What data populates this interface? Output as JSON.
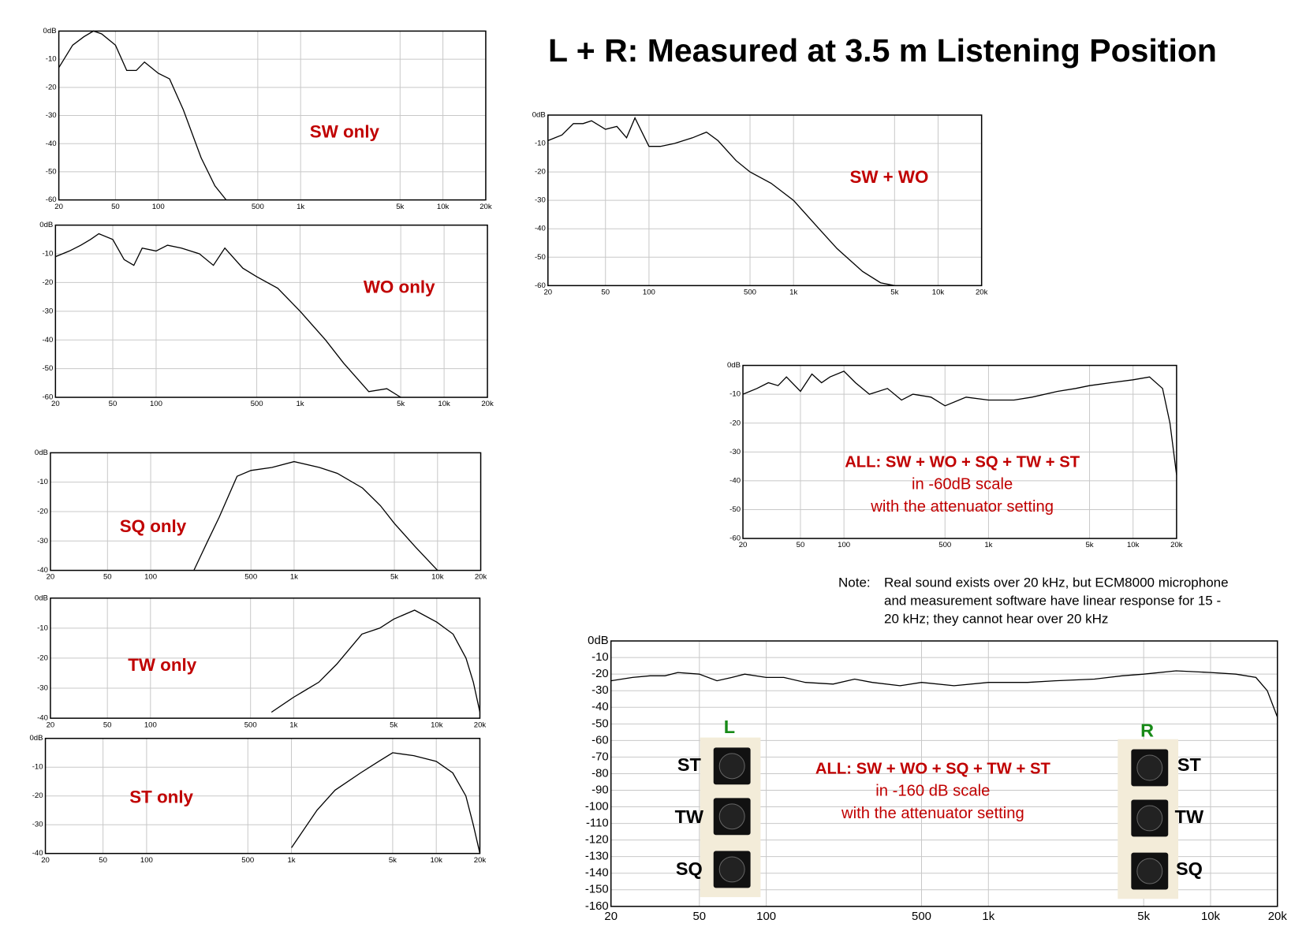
{
  "title": "L + R:  Measured at 3.5 m Listening Position",
  "note": {
    "label": "Note:",
    "lines": [
      "Real sound exists over 20 kHz, but ECM8000 microphone",
      "and measurement software have linear response for 15 -",
      "20 kHz; they cannot hear over 20 kHz"
    ]
  },
  "chart_data": [
    {
      "type": "line",
      "annotation": [
        "SW only"
      ],
      "xlim": [
        20,
        20000
      ],
      "ylim": [
        -60,
        0
      ],
      "log_x": true,
      "grid": true,
      "xticks": [
        20,
        50,
        100,
        500,
        {
          "value": 1000,
          "label": "1k"
        },
        {
          "value": 5000,
          "label": "5k"
        },
        {
          "value": 10000,
          "label": "10k"
        },
        {
          "value": 20000,
          "label": "20k"
        }
      ],
      "yticks": [
        {
          "value": 0,
          "label": "0dB"
        },
        -10,
        -20,
        -30,
        -40,
        -50,
        -60
      ],
      "x": [
        20,
        25,
        30,
        35,
        40,
        50,
        60,
        70,
        80,
        100,
        120,
        150,
        200,
        250,
        300,
        400,
        500,
        700,
        1000,
        1500,
        2000,
        3000,
        4000,
        5000,
        7000,
        10000,
        13000,
        16000,
        18000,
        20000
      ],
      "series": [
        {
          "color": "#000000",
          "values": [
            -13,
            -5,
            -2,
            0,
            -1,
            -5,
            -14,
            -14,
            -11,
            -15,
            -17,
            -28,
            -45,
            -55,
            -60,
            null,
            null,
            null,
            null,
            null,
            null,
            null,
            null,
            null,
            null,
            null,
            null,
            null,
            null,
            null
          ]
        }
      ]
    },
    {
      "type": "line",
      "annotation": [
        "WO only"
      ],
      "xlim": [
        20,
        20000
      ],
      "ylim": [
        -60,
        0
      ],
      "log_x": true,
      "grid": true,
      "xticks": [
        20,
        50,
        100,
        500,
        {
          "value": 1000,
          "label": "1k"
        },
        {
          "value": 5000,
          "label": "5k"
        },
        {
          "value": 10000,
          "label": "10k"
        },
        {
          "value": 20000,
          "label": "20k"
        }
      ],
      "yticks": [
        {
          "value": 0,
          "label": "0dB"
        },
        -10,
        -20,
        -30,
        -40,
        -50,
        -60
      ],
      "x": [
        20,
        25,
        30,
        35,
        40,
        50,
        60,
        70,
        80,
        100,
        120,
        150,
        200,
        250,
        300,
        400,
        500,
        700,
        1000,
        1500,
        2000,
        3000,
        4000,
        5000,
        7000,
        10000,
        13000,
        16000,
        18000,
        20000
      ],
      "series": [
        {
          "color": "#000000",
          "values": [
            -11,
            -9,
            -7,
            -5,
            -3,
            -5,
            -12,
            -14,
            -8,
            -9,
            -7,
            -8,
            -10,
            -14,
            -8,
            -15,
            -18,
            -22,
            -30,
            -40,
            -48,
            -58,
            -57,
            -60,
            null,
            null,
            null,
            null,
            null,
            null
          ]
        }
      ]
    },
    {
      "type": "line",
      "annotation": [
        "SQ only"
      ],
      "xlim": [
        20,
        20000
      ],
      "ylim": [
        -40,
        0
      ],
      "log_x": true,
      "grid": true,
      "xticks": [
        20,
        50,
        100,
        500,
        {
          "value": 1000,
          "label": "1k"
        },
        {
          "value": 5000,
          "label": "5k"
        },
        {
          "value": 10000,
          "label": "10k"
        },
        {
          "value": 20000,
          "label": "20k"
        }
      ],
      "yticks": [
        {
          "value": 0,
          "label": "0dB"
        },
        -10,
        -20,
        -30,
        -40
      ],
      "x": [
        20,
        25,
        30,
        35,
        40,
        50,
        60,
        70,
        80,
        100,
        120,
        150,
        200,
        250,
        300,
        400,
        500,
        700,
        1000,
        1500,
        2000,
        3000,
        4000,
        5000,
        7000,
        10000,
        13000,
        16000,
        18000,
        20000
      ],
      "series": [
        {
          "color": "#000000",
          "values": [
            null,
            null,
            null,
            null,
            null,
            null,
            null,
            null,
            null,
            null,
            null,
            null,
            -40,
            -30,
            -22,
            -8,
            -6,
            -5,
            -3,
            -5,
            -7,
            -12,
            -18,
            -24,
            -32,
            -40,
            null,
            null,
            null,
            null
          ]
        }
      ]
    },
    {
      "type": "line",
      "annotation": [
        "TW only"
      ],
      "xlim": [
        20,
        20000
      ],
      "ylim": [
        -40,
        0
      ],
      "log_x": true,
      "grid": true,
      "xticks": [
        20,
        50,
        100,
        500,
        {
          "value": 1000,
          "label": "1k"
        },
        {
          "value": 5000,
          "label": "5k"
        },
        {
          "value": 10000,
          "label": "10k"
        },
        {
          "value": 20000,
          "label": "20k"
        }
      ],
      "yticks": [
        {
          "value": 0,
          "label": "0dB"
        },
        -10,
        -20,
        -30,
        -40
      ],
      "x": [
        20,
        25,
        30,
        35,
        40,
        50,
        60,
        70,
        80,
        100,
        120,
        150,
        200,
        250,
        300,
        400,
        500,
        700,
        1000,
        1500,
        2000,
        3000,
        4000,
        5000,
        7000,
        10000,
        13000,
        16000,
        18000,
        20000
      ],
      "series": [
        {
          "color": "#000000",
          "values": [
            null,
            null,
            null,
            null,
            null,
            null,
            null,
            null,
            null,
            null,
            null,
            null,
            null,
            null,
            null,
            null,
            null,
            -38,
            -33,
            -28,
            -22,
            -12,
            -10,
            -7,
            -4,
            -8,
            -12,
            -20,
            -28,
            -38
          ]
        }
      ]
    },
    {
      "type": "line",
      "annotation": [
        "ST only"
      ],
      "xlim": [
        20,
        20000
      ],
      "ylim": [
        -40,
        0
      ],
      "log_x": true,
      "grid": true,
      "xticks": [
        20,
        50,
        100,
        500,
        {
          "value": 1000,
          "label": "1k"
        },
        {
          "value": 5000,
          "label": "5k"
        },
        {
          "value": 10000,
          "label": "10k"
        },
        {
          "value": 20000,
          "label": "20k"
        }
      ],
      "yticks": [
        {
          "value": 0,
          "label": "0dB"
        },
        -10,
        -20,
        -30,
        -40
      ],
      "x": [
        20,
        25,
        30,
        35,
        40,
        50,
        60,
        70,
        80,
        100,
        120,
        150,
        200,
        250,
        300,
        400,
        500,
        700,
        1000,
        1500,
        2000,
        3000,
        4000,
        5000,
        7000,
        10000,
        13000,
        16000,
        18000,
        20000
      ],
      "series": [
        {
          "color": "#000000",
          "values": [
            null,
            null,
            null,
            null,
            null,
            null,
            null,
            null,
            null,
            null,
            null,
            null,
            null,
            null,
            null,
            null,
            null,
            null,
            -38,
            -25,
            -18,
            -12,
            -8,
            -5,
            -6,
            -8,
            -12,
            -20,
            -30,
            -40
          ]
        }
      ]
    },
    {
      "type": "line",
      "annotation": [
        "SW + WO"
      ],
      "xlim": [
        20,
        20000
      ],
      "ylim": [
        -60,
        0
      ],
      "log_x": true,
      "grid": true,
      "xticks": [
        20,
        50,
        100,
        500,
        {
          "value": 1000,
          "label": "1k"
        },
        {
          "value": 5000,
          "label": "5k"
        },
        {
          "value": 10000,
          "label": "10k"
        },
        {
          "value": 20000,
          "label": "20k"
        }
      ],
      "yticks": [
        {
          "value": 0,
          "label": "0dB"
        },
        -10,
        -20,
        -30,
        -40,
        -50,
        -60
      ],
      "x": [
        20,
        25,
        30,
        35,
        40,
        50,
        60,
        70,
        80,
        100,
        120,
        150,
        200,
        250,
        300,
        400,
        500,
        700,
        1000,
        1500,
        2000,
        3000,
        4000,
        5000,
        7000,
        10000,
        13000,
        16000,
        18000,
        20000
      ],
      "series": [
        {
          "color": "#000000",
          "values": [
            -9,
            -7,
            -3,
            -3,
            -2,
            -5,
            -4,
            -8,
            -1,
            -11,
            -11,
            -10,
            -8,
            -6,
            -9,
            -16,
            -20,
            -24,
            -30,
            -40,
            -47,
            -55,
            -59,
            -60,
            null,
            null,
            null,
            null,
            null,
            null
          ]
        }
      ]
    },
    {
      "type": "line",
      "annotation": [
        "ALL: SW + WO + SQ + TW + ST",
        "in -60dB scale",
        "with the attenuator setting"
      ],
      "xlim": [
        20,
        20000
      ],
      "ylim": [
        -60,
        0
      ],
      "log_x": true,
      "grid": true,
      "xticks": [
        20,
        50,
        100,
        500,
        {
          "value": 1000,
          "label": "1k"
        },
        {
          "value": 5000,
          "label": "5k"
        },
        {
          "value": 10000,
          "label": "10k"
        },
        {
          "value": 20000,
          "label": "20k"
        }
      ],
      "yticks": [
        {
          "value": 0,
          "label": "0dB"
        },
        -10,
        -20,
        -30,
        -40,
        -50,
        -60
      ],
      "x": [
        20,
        25,
        30,
        35,
        40,
        50,
        60,
        70,
        80,
        100,
        120,
        150,
        200,
        250,
        300,
        400,
        500,
        700,
        1000,
        1500,
        2000,
        3000,
        4000,
        5000,
        7000,
        10000,
        13000,
        16000,
        18000,
        20000
      ],
      "series": [
        {
          "color": "#000000",
          "values": [
            -10,
            -8,
            -6,
            -7,
            -4,
            -9,
            -3,
            -6,
            -4,
            -2,
            -6,
            -10,
            -8,
            -12,
            -10,
            -11,
            -14,
            -11,
            -12,
            -12,
            -11,
            -9,
            -8,
            -7,
            -6,
            -5,
            -4,
            -8,
            -20,
            -38
          ]
        }
      ]
    },
    {
      "type": "line",
      "annotation": [
        "ALL: SW + WO + SQ + TW + ST",
        "in -160 dB scale",
        "with the attenuator setting"
      ],
      "xlim": [
        20,
        20000
      ],
      "ylim": [
        -160,
        0
      ],
      "log_x": true,
      "grid": true,
      "left_label": "L",
      "right_label": "R",
      "left_controls": [
        "ST",
        "TW",
        "SQ"
      ],
      "right_controls": [
        "ST",
        "TW",
        "SQ"
      ],
      "xticks": [
        20,
        50,
        100,
        500,
        {
          "value": 1000,
          "label": "1k"
        },
        {
          "value": 5000,
          "label": "5k"
        },
        {
          "value": 10000,
          "label": "10k"
        },
        {
          "value": 20000,
          "label": "20k"
        }
      ],
      "yticks": [
        {
          "value": 0,
          "label": "0dB"
        },
        -10,
        -20,
        -30,
        -40,
        -50,
        -60,
        -70,
        -80,
        -90,
        -100,
        -110,
        -120,
        -130,
        -140,
        -150,
        -160
      ],
      "x": [
        20,
        25,
        30,
        35,
        40,
        50,
        60,
        70,
        80,
        100,
        120,
        150,
        200,
        250,
        300,
        400,
        500,
        700,
        1000,
        1500,
        2000,
        3000,
        4000,
        5000,
        7000,
        10000,
        13000,
        16000,
        18000,
        20000
      ],
      "series": [
        {
          "color": "#000000",
          "values": [
            -24,
            -22,
            -21,
            -21,
            -19,
            -20,
            -24,
            -22,
            -20,
            -22,
            -22,
            -25,
            -26,
            -23,
            -25,
            -27,
            -25,
            -27,
            -25,
            -25,
            -24,
            -23,
            -21,
            -20,
            -18,
            -19,
            -20,
            -22,
            -30,
            -46
          ]
        }
      ]
    }
  ]
}
